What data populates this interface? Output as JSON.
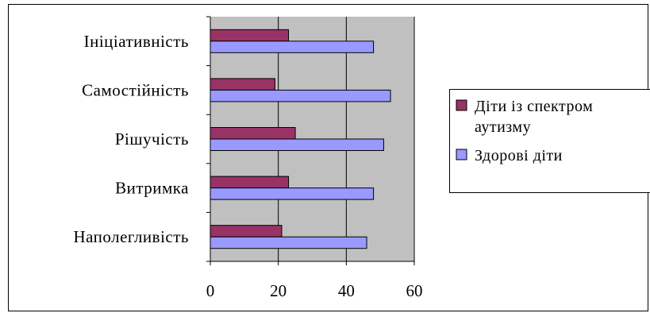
{
  "chart_data": {
    "type": "bar",
    "orientation": "horizontal",
    "categories": [
      "Наполегливість",
      "Витримка",
      "Рішучість",
      "Самостійність",
      "Ініціативність"
    ],
    "series": [
      {
        "name": "Діти із спектром аутизму",
        "name_lines": [
          "Діти із спектром",
          "аутизму"
        ],
        "color": "#993366",
        "values": [
          21,
          23,
          25,
          19,
          23
        ]
      },
      {
        "name": "Здорові діти",
        "name_lines": [
          "Здорові діти"
        ],
        "color": "#9999ff",
        "values": [
          46,
          48,
          51,
          53,
          48
        ]
      }
    ],
    "xlim": [
      0,
      60
    ],
    "xticks": [
      "0",
      "20",
      "40",
      "60"
    ],
    "title": "",
    "xlabel": "",
    "ylabel": "",
    "grid": "vertical",
    "legend": "right",
    "plot_background": "#c0c0c0"
  }
}
